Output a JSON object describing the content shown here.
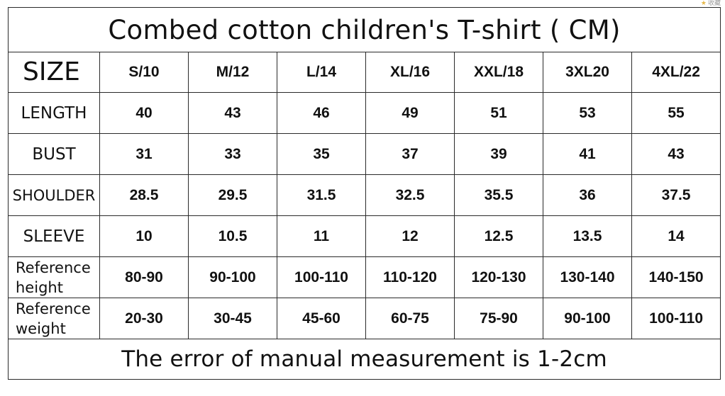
{
  "corner_tag": "收藏",
  "title": "Combed cotton children's T-shirt ( CM)",
  "header": {
    "label": "SIZE",
    "sizes": [
      "S/10",
      "M/12",
      "L/14",
      "XL/16",
      "XXL/18",
      "3XL20",
      "4XL/22"
    ]
  },
  "rows": [
    {
      "label": "LENGTH",
      "values": [
        "40",
        "43",
        "46",
        "49",
        "51",
        "53",
        "55"
      ]
    },
    {
      "label": "BUST",
      "values": [
        "31",
        "33",
        "35",
        "37",
        "39",
        "41",
        "43"
      ]
    },
    {
      "label": "SHOULDER",
      "values": [
        "28.5",
        "29.5",
        "31.5",
        "32.5",
        "35.5",
        "36",
        "37.5"
      ]
    },
    {
      "label": "SLEEVE",
      "values": [
        "10",
        "10.5",
        "11",
        "12",
        "12.5",
        "13.5",
        "14"
      ]
    },
    {
      "label_lines": [
        "Reference",
        "height"
      ],
      "values": [
        "80-90",
        "90-100",
        "100-110",
        "110-120",
        "120-130",
        "130-140",
        "140-150"
      ]
    },
    {
      "label_lines": [
        "Reference",
        "weight"
      ],
      "values": [
        "20-30",
        "30-45",
        "45-60",
        "60-75",
        "75-90",
        "90-100",
        "100-110"
      ]
    }
  ],
  "footer": "The error of manual measurement is 1-2cm"
}
